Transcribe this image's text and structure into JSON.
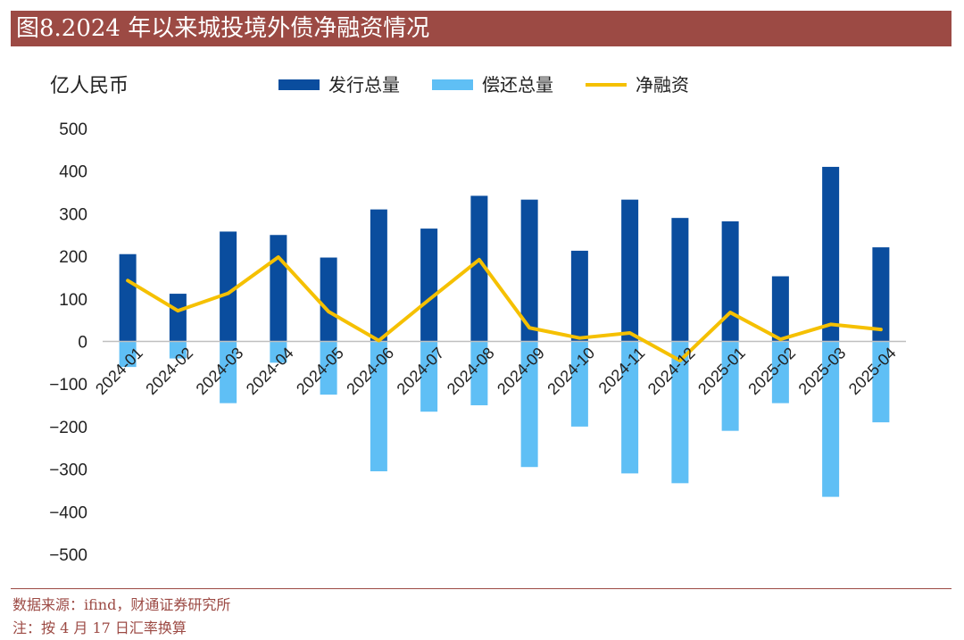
{
  "title": "图8.2024 年以来城投境外债净融资情况",
  "unit_label": "亿人民币",
  "footer": {
    "source": "数据来源：ifind，财通证券研究所",
    "note": "注：按 4 月 17 日汇率换算"
  },
  "colors": {
    "title_bg": "#9c4a44",
    "issuance": "#0a4d9e",
    "repayment": "#5fbff5",
    "net": "#f5c000"
  },
  "chart_data": {
    "type": "bar",
    "title": "",
    "ylabel": "亿人民币",
    "ylim": [
      -500,
      500
    ],
    "yticks": [
      500,
      400,
      300,
      200,
      100,
      0,
      -100,
      -200,
      -300,
      -400,
      -500
    ],
    "legend": "top",
    "grid": false,
    "categories": [
      "2024-01",
      "2024-02",
      "2024-03",
      "2024-04",
      "2024-05",
      "2024-06",
      "2024-07",
      "2024-08",
      "2024-09",
      "2024-10",
      "2024-11",
      "2024-12",
      "2025-01",
      "2025-02",
      "2025-03",
      "2025-04"
    ],
    "series": [
      {
        "name": "发行总量",
        "type": "bar",
        "values": [
          205,
          112,
          258,
          250,
          197,
          310,
          265,
          342,
          333,
          213,
          333,
          290,
          282,
          153,
          410,
          221
        ]
      },
      {
        "name": "偿还总量",
        "type": "bar",
        "values": [
          -60,
          -40,
          -145,
          -50,
          -125,
          -305,
          -165,
          -150,
          -295,
          -200,
          -310,
          -333,
          -210,
          -145,
          -365,
          -190
        ]
      },
      {
        "name": "净融资",
        "type": "line",
        "values": [
          143,
          72,
          113,
          198,
          70,
          2,
          98,
          192,
          32,
          8,
          20,
          -45,
          68,
          5,
          40,
          28
        ]
      }
    ]
  }
}
